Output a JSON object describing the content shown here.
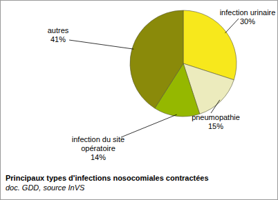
{
  "chart_data": {
    "type": "pie",
    "title": "Principaux types d'infections nosocomiales contractées",
    "annotations": [
      "doc. GDD, source InVS"
    ],
    "categories": [
      "infection urinaire",
      "pneumopathie",
      "infection du site opératoire",
      "autres"
    ],
    "values": [
      30,
      15,
      14,
      41
    ],
    "value_labels": [
      "30%",
      "15%",
      "14%",
      "41%"
    ],
    "colors": [
      "#f7e81c",
      "#ecebbd",
      "#95b800",
      "#8a8a0a"
    ],
    "data_labels": true
  }
}
